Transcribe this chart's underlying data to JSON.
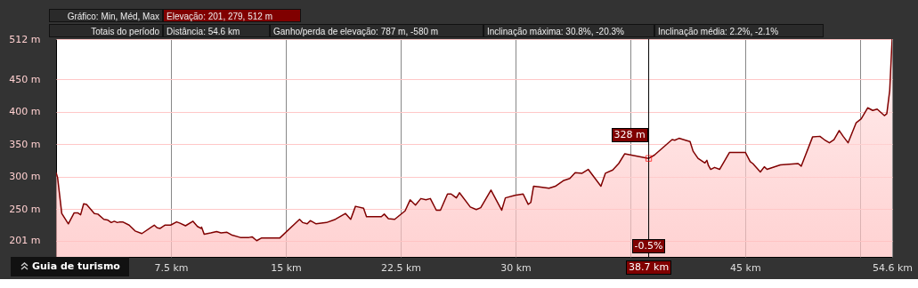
{
  "chart_data": {
    "type": "area",
    "annotations": [
      "Gráfico: Min, Méd, Max",
      "Elevação: 201, 279, 512 m",
      "Totais do período",
      "Distância: 54.6 km",
      "Ganho/perda de elevação: 787 m, -580 m",
      "Inclinação máxima: 30.8%, -20.3%",
      "Inclinação média: 2.2%, -2.1%",
      "Guia de turismo",
      {
        "text": "328 m",
        "x": 38.7,
        "y": 328
      },
      {
        "text": "-0.5%",
        "x": 38.7
      }
    ],
    "ref_lines": [
      {
        "axis": "x",
        "value": 38.7,
        "label": "38.7 km",
        "color": "#000000"
      }
    ],
    "series": [
      {
        "color": "#800000",
        "x": [
          0,
          0.1,
          0.37,
          0.8,
          1.18,
          1.41,
          1.6,
          1.8,
          1.99,
          2.5,
          2.73,
          3.12,
          3.36,
          3.6,
          3.8,
          4.0,
          4.16,
          4.35,
          4.77,
          5.16,
          5.6,
          6.41,
          6.6,
          6.8,
          7.1,
          7.48,
          7.87,
          8.1,
          8.45,
          8.94,
          9.23,
          9.46,
          9.5,
          9.67,
          10.1,
          10.48,
          10.77,
          11.16,
          11.45,
          12.03,
          12.6,
          12.8,
          13.1,
          13.4,
          14.6,
          15.9,
          16.1,
          16.4,
          16.6,
          16.98,
          17.66,
          18.24,
          18.9,
          19.24,
          19.55,
          20.08,
          20.27,
          21.24,
          21.43,
          21.7,
          22.11,
          22.79,
          23.12,
          23.47,
          23.82,
          24.15,
          24.44,
          24.83,
          25.1,
          25.56,
          25.8,
          26.14,
          26.34,
          27.05,
          27.44,
          27.73,
          28.4,
          28.99,
          29.1,
          29.34,
          29.96,
          30.5,
          30.83,
          31.0,
          31.18,
          31.55,
          32.19,
          32.6,
          33.16,
          33.55,
          33.9,
          34.35,
          34.75,
          35.58,
          35.87,
          36.35,
          36.74,
          37.13,
          38.7,
          39.07,
          40.23,
          40.4,
          40.68,
          41.1,
          41.4,
          41.6,
          41.92,
          42.37,
          42.5,
          42.6,
          42.75,
          43.0,
          43.33,
          43.97,
          45.02,
          45.33,
          45.5,
          45.99,
          46.25,
          46.43,
          47.3,
          48.46,
          48.66,
          49.4,
          49.88,
          50.16,
          50.5,
          50.8,
          51.14,
          51.4,
          51.72,
          52.25,
          52.58,
          53.0,
          53.33,
          53.62,
          54.09,
          54.25,
          54.44,
          54.57,
          54.6
        ],
        "values": [
          306,
          298,
          243,
          227,
          244,
          244,
          241,
          258,
          257,
          243,
          242,
          234,
          233,
          229,
          231,
          229,
          230,
          230,
          225,
          216,
          212,
          225,
          221,
          220,
          225,
          225,
          230,
          228,
          224,
          231,
          223,
          220,
          222,
          211,
          213,
          215,
          213,
          214,
          210,
          206,
          206,
          207,
          201,
          205,
          205,
          234,
          229,
          227,
          232,
          227,
          229,
          234,
          243,
          234,
          254,
          251,
          238,
          238,
          242,
          235,
          234,
          247,
          264,
          256,
          266,
          264,
          266,
          248,
          248,
          273,
          273,
          267,
          275,
          253,
          249,
          252,
          279,
          253,
          248,
          267,
          271,
          273,
          257,
          260,
          285,
          284,
          282,
          285,
          294,
          297,
          306,
          305,
          311,
          285,
          305,
          310,
          320,
          335,
          328,
          333,
          357,
          356,
          359,
          356,
          354,
          339,
          328,
          321,
          325,
          317,
          311,
          314,
          311,
          337,
          337,
          323,
          320,
          307,
          315,
          311,
          318,
          320,
          316,
          361,
          362,
          357,
          352,
          357,
          371,
          362,
          352,
          383,
          389,
          406,
          402,
          404,
          394,
          397,
          433,
          499,
          512
        ]
      }
    ],
    "xlim": [
      0,
      54.6
    ],
    "xticks": [
      {
        "value": 7.5,
        "label": "7.5 km"
      },
      {
        "value": 15,
        "label": "15 km"
      },
      {
        "value": 22.5,
        "label": "22.5 km"
      },
      {
        "value": 30,
        "label": "30 km"
      },
      {
        "value": 37.5,
        "label": null
      },
      {
        "value": 45,
        "label": "45 km"
      },
      {
        "value": 52.5,
        "label": null
      },
      {
        "value": 54.6,
        "label": "54.6 km"
      }
    ],
    "ylim": [
      176,
      512
    ],
    "yticks": [
      {
        "value": 201,
        "label": "201 m"
      },
      {
        "value": 250,
        "label": "250 m"
      },
      {
        "value": 300,
        "label": "300 m"
      },
      {
        "value": 350,
        "label": "350 m"
      },
      {
        "value": 400,
        "label": "400 m"
      },
      {
        "value": 450,
        "label": "450 m"
      },
      {
        "value": 512,
        "label": "512 m"
      }
    ],
    "grid": true
  }
}
